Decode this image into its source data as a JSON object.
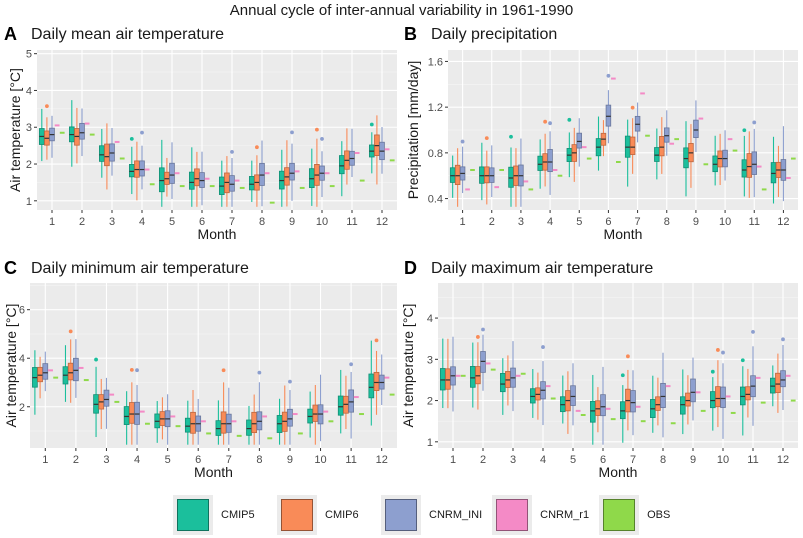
{
  "figure_title": "Annual cycle of inter-annual variability in 1961-1990",
  "colors": {
    "CMIP5": "#1bbf9c",
    "CMIP6": "#f98b58",
    "CNRM_INI": "#8d9fcf",
    "CNRM_r1": "#f48ac6",
    "OBS": "#8fd94a"
  },
  "legend": [
    {
      "name": "CMIP5",
      "color": "#1bbf9c"
    },
    {
      "name": "CMIP6",
      "color": "#f98b58"
    },
    {
      "name": "CNRM_INI",
      "color": "#8d9fcf"
    },
    {
      "name": "CNRM_r1",
      "color": "#f48ac6"
    },
    {
      "name": "OBS",
      "color": "#8fd94a"
    }
  ],
  "chart_data": [
    {
      "panel": "A",
      "type": "boxplot",
      "title": "Daily mean air temperature",
      "xlabel": "Month",
      "ylabel": "Air temperature [°C]",
      "categories": [
        "1",
        "2",
        "3",
        "4",
        "5",
        "6",
        "7",
        "8",
        "9",
        "10",
        "11",
        "12"
      ],
      "ylim": [
        0.75,
        5.1
      ],
      "yticks": [
        1,
        2,
        3,
        4,
        5
      ],
      "series": [
        {
          "name": "CMIP5",
          "medians": [
            2.75,
            2.8,
            2.25,
            1.8,
            1.55,
            1.5,
            1.4,
            1.45,
            1.55,
            1.6,
            1.95,
            2.35
          ]
        },
        {
          "name": "CMIP6",
          "medians": [
            2.7,
            2.75,
            2.2,
            1.85,
            1.6,
            1.6,
            1.5,
            1.5,
            1.65,
            1.7,
            2.1,
            2.5
          ]
        },
        {
          "name": "CNRM_INI",
          "medians": [
            2.8,
            2.85,
            2.3,
            1.85,
            1.7,
            1.55,
            1.45,
            1.7,
            1.75,
            1.75,
            2.15,
            2.35
          ]
        },
        {
          "name": "CNRM_r1",
          "values": [
            3.05,
            3.1,
            2.6,
            1.85,
            1.75,
            1.6,
            1.55,
            1.75,
            1.8,
            1.75,
            2.3,
            2.4
          ]
        },
        {
          "name": "OBS",
          "values": [
            2.85,
            2.8,
            2.15,
            1.45,
            1.4,
            1.4,
            1.35,
            0.95,
            1.35,
            1.4,
            1.55,
            2.1
          ]
        }
      ]
    },
    {
      "panel": "B",
      "type": "boxplot",
      "title": "Daily precipitation",
      "xlabel": "Month",
      "ylabel": "Precipitation [mm/day]",
      "categories": [
        "1",
        "2",
        "3",
        "4",
        "5",
        "6",
        "7",
        "8",
        "9",
        "10",
        "11",
        "12"
      ],
      "ylim": [
        0.3,
        1.7
      ],
      "yticks": [
        0.4,
        0.8,
        1.2,
        1.6
      ],
      "series": [
        {
          "name": "CMIP5",
          "medians": [
            0.6,
            0.6,
            0.58,
            0.7,
            0.78,
            0.85,
            0.85,
            0.78,
            0.75,
            0.7,
            0.65,
            0.62
          ]
        },
        {
          "name": "CMIP6",
          "medians": [
            0.6,
            0.6,
            0.6,
            0.72,
            0.8,
            0.92,
            0.85,
            0.85,
            0.8,
            0.75,
            0.68,
            0.65
          ]
        },
        {
          "name": "CNRM_INI",
          "medians": [
            0.62,
            0.6,
            0.6,
            0.72,
            0.9,
            1.12,
            1.05,
            0.95,
            1.0,
            0.75,
            0.7,
            0.65
          ]
        },
        {
          "name": "CNRM_r1",
          "values": [
            0.48,
            0.5,
            0.55,
            0.65,
            0.85,
            1.45,
            1.32,
            0.88,
            1.1,
            0.92,
            0.68,
            0.58
          ]
        },
        {
          "name": "OBS",
          "values": [
            0.65,
            0.65,
            0.48,
            0.6,
            0.75,
            0.72,
            0.95,
            0.92,
            0.7,
            0.82,
            0.48,
            0.75
          ]
        }
      ]
    },
    {
      "panel": "C",
      "type": "boxplot",
      "title": "Daily minimum air temperature",
      "xlabel": "Month",
      "ylabel": "Air temperature [°C]",
      "categories": [
        "1",
        "2",
        "3",
        "4",
        "5",
        "6",
        "7",
        "8",
        "9",
        "10",
        "11",
        "12"
      ],
      "ylim": [
        0.3,
        7.1
      ],
      "yticks": [
        2,
        4,
        6
      ],
      "series": [
        {
          "name": "CMIP5",
          "medians": [
            3.2,
            3.3,
            2.1,
            1.6,
            1.4,
            1.2,
            1.1,
            1.1,
            1.3,
            1.6,
            2.0,
            2.8
          ]
        },
        {
          "name": "CMIP6",
          "medians": [
            3.3,
            3.4,
            2.2,
            1.7,
            1.5,
            1.3,
            1.3,
            1.3,
            1.4,
            1.7,
            2.1,
            3.0
          ]
        },
        {
          "name": "CNRM_INI",
          "medians": [
            3.4,
            3.5,
            2.3,
            1.7,
            1.5,
            1.3,
            1.3,
            1.4,
            1.5,
            1.7,
            2.2,
            3.0
          ]
        },
        {
          "name": "CNRM_r1",
          "values": [
            3.5,
            3.6,
            2.5,
            1.8,
            1.6,
            1.4,
            1.4,
            1.6,
            1.7,
            1.8,
            2.4,
            3.2
          ]
        },
        {
          "name": "OBS",
          "values": [
            3.2,
            3.1,
            2.2,
            1.3,
            1.2,
            0.9,
            0.8,
            0.7,
            0.9,
            1.4,
            1.7,
            2.5
          ]
        }
      ]
    },
    {
      "panel": "D",
      "type": "boxplot",
      "title": "Daily maximum air temperature",
      "xlabel": "Month",
      "ylabel": "Air temperature [°C]",
      "categories": [
        "1",
        "2",
        "3",
        "4",
        "5",
        "6",
        "7",
        "8",
        "9",
        "10",
        "11",
        "12"
      ],
      "ylim": [
        0.85,
        4.85
      ],
      "yticks": [
        1,
        2,
        3,
        4
      ],
      "series": [
        {
          "name": "CMIP5",
          "medians": [
            2.5,
            2.55,
            2.4,
            2.1,
            1.9,
            1.75,
            1.75,
            1.8,
            1.9,
            2.0,
            2.1,
            2.35
          ]
        },
        {
          "name": "CMIP6",
          "medians": [
            2.5,
            2.6,
            2.5,
            2.15,
            2.0,
            1.8,
            2.0,
            1.9,
            2.0,
            2.05,
            2.15,
            2.4
          ]
        },
        {
          "name": "CNRM_INI",
          "medians": [
            2.6,
            2.95,
            2.55,
            2.25,
            2.1,
            1.85,
            1.95,
            2.1,
            2.2,
            2.05,
            2.35,
            2.5
          ]
        },
        {
          "name": "CNRM_r1",
          "values": [
            2.6,
            2.9,
            2.6,
            2.35,
            1.75,
            1.8,
            1.85,
            2.35,
            2.2,
            2.1,
            2.55,
            2.6
          ]
        },
        {
          "name": "OBS",
          "values": [
            2.6,
            2.75,
            2.65,
            2.05,
            1.65,
            1.55,
            1.5,
            1.45,
            1.75,
            1.7,
            1.95,
            2.0
          ]
        }
      ]
    }
  ]
}
